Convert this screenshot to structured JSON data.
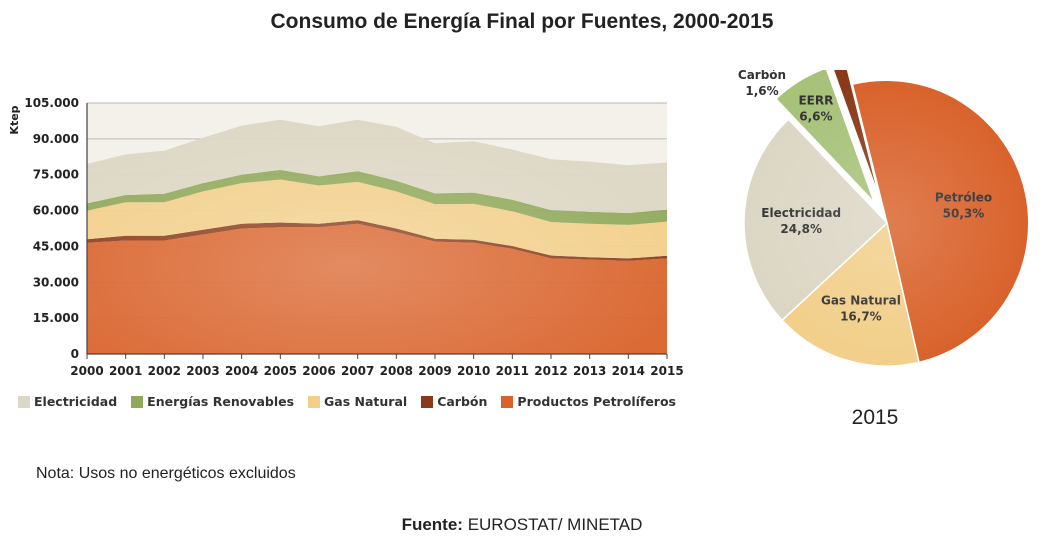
{
  "title": "Consumo de Energía Final por Fuentes, 2000-2015",
  "note": "Nota: Usos no energéticos excluidos",
  "source": {
    "label": "Fuente:",
    "value": "EUROSTAT/ MINETAD"
  },
  "chart_data": [
    {
      "type": "area",
      "stacked": true,
      "ylabel": "Ktep",
      "ylim": [
        0,
        105000
      ],
      "yticks": [
        "0",
        "15.000",
        "30.000",
        "45.000",
        "60.000",
        "75.000",
        "90.000",
        "105.000"
      ],
      "ytick_values": [
        0,
        15000,
        30000,
        45000,
        60000,
        75000,
        90000,
        105000
      ],
      "x": [
        "2000",
        "2001",
        "2002",
        "2003",
        "2004",
        "2005",
        "2006",
        "2007",
        "2008",
        "2009",
        "2010",
        "2011",
        "2012",
        "2013",
        "2014",
        "2015"
      ],
      "grid": true,
      "legend_position": "bottom",
      "series": [
        {
          "name": "Productos Petrolíferos",
          "color": "#d9622b",
          "values": [
            46500,
            47500,
            47500,
            50000,
            52500,
            53000,
            53000,
            54500,
            51000,
            47000,
            46500,
            44000,
            40000,
            39500,
            39000,
            40000
          ]
        },
        {
          "name": "Carbón",
          "color": "#8a3a1a",
          "values": [
            1500,
            2000,
            2000,
            2000,
            2000,
            2000,
            1500,
            1500,
            1500,
            1200,
            1300,
            1200,
            1200,
            1000,
            1000,
            1100
          ]
        },
        {
          "name": "Gas Natural",
          "color": "#f2cf8a",
          "values": [
            12000,
            14000,
            14000,
            16000,
            17000,
            18000,
            16000,
            16000,
            15500,
            14500,
            15000,
            14500,
            14000,
            14000,
            14000,
            14300
          ]
        },
        {
          "name": "Energías Renovables",
          "color": "#8fa85a",
          "values": [
            3000,
            3000,
            3500,
            3500,
            3500,
            4000,
            3800,
            4500,
            4500,
            4500,
            4700,
            4800,
            5000,
            5000,
            5000,
            5000
          ]
        },
        {
          "name": "Electricidad",
          "color": "#dcd6c4",
          "values": [
            16500,
            17000,
            18000,
            19000,
            20500,
            21000,
            21000,
            21500,
            22500,
            21000,
            21500,
            21000,
            21300,
            21000,
            20000,
            19700
          ]
        }
      ]
    },
    {
      "type": "pie",
      "title": "2015",
      "slices": [
        {
          "label": "Petróleo",
          "value": 50.3,
          "display": "50,3%",
          "color": "#d9622b"
        },
        {
          "label": "Gas Natural",
          "value": 16.7,
          "display": "16,7%",
          "color": "#f2cf8a"
        },
        {
          "label": "Electricidad",
          "value": 24.8,
          "display": "24,8%",
          "color": "#dcd6c4"
        },
        {
          "label": "EERR",
          "value": 6.6,
          "display": "6,6%",
          "color": "#a8c27a",
          "exploded": true
        },
        {
          "label": "Carbón",
          "value": 1.6,
          "display": "1,6%",
          "color": "#8a3a1a",
          "exploded": true
        }
      ]
    }
  ]
}
